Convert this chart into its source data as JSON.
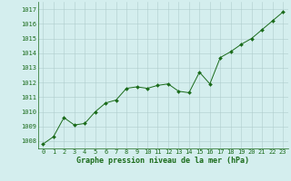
{
  "x": [
    0,
    1,
    2,
    3,
    4,
    5,
    6,
    7,
    8,
    9,
    10,
    11,
    12,
    13,
    14,
    15,
    16,
    17,
    18,
    19,
    20,
    21,
    22,
    23
  ],
  "y": [
    1007.8,
    1008.3,
    1009.6,
    1009.1,
    1009.2,
    1010.0,
    1010.6,
    1010.8,
    1011.6,
    1011.7,
    1011.6,
    1011.8,
    1011.9,
    1011.4,
    1011.3,
    1012.7,
    1011.9,
    1013.7,
    1014.1,
    1014.6,
    1015.0,
    1015.6,
    1016.2,
    1016.8
  ],
  "line_color": "#1a6b1a",
  "marker": "D",
  "marker_size": 2.0,
  "bg_color": "#d4eeee",
  "grid_color": "#b0cccc",
  "xlabel": "Graphe pression niveau de la mer (hPa)",
  "xlabel_color": "#1a6b1a",
  "tick_color": "#1a6b1a",
  "ylim": [
    1007.5,
    1017.5
  ],
  "yticks": [
    1008,
    1009,
    1010,
    1011,
    1012,
    1013,
    1014,
    1015,
    1016,
    1017
  ],
  "xlim": [
    -0.5,
    23.5
  ],
  "xticks": [
    0,
    1,
    2,
    3,
    4,
    5,
    6,
    7,
    8,
    9,
    10,
    11,
    12,
    13,
    14,
    15,
    16,
    17,
    18,
    19,
    20,
    21,
    22,
    23
  ],
  "tick_labelsize": 5.0,
  "xlabel_fontsize": 6.0,
  "linewidth": 0.7
}
